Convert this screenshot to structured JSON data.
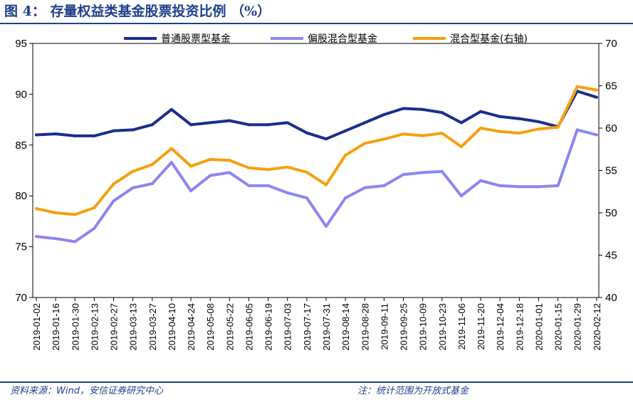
{
  "title": "图 4：  存量权益类基金股票投资比例 （%）",
  "footer": {
    "source": "资料来源：Wind，安信证券研究中心",
    "note": "注：统计范围为开放式基金"
  },
  "colors": {
    "series1": "#1a2d8c",
    "series2": "#8b86f0",
    "series3": "#f5a00f",
    "frame": "#1f3f8c"
  },
  "chart_data": {
    "type": "line",
    "title": "",
    "left_axis": {
      "min": 70,
      "max": 95,
      "ticks": [
        70,
        75,
        80,
        85,
        90,
        95
      ]
    },
    "right_axis": {
      "min": 40,
      "max": 70,
      "ticks": [
        40,
        45,
        50,
        55,
        60,
        65,
        70
      ]
    },
    "categories": [
      "2019-01-02",
      "2019-01-16",
      "2019-01-30",
      "2019-02-13",
      "2019-02-27",
      "2019-03-13",
      "2019-03-27",
      "2019-04-10",
      "2019-04-24",
      "2019-05-08",
      "2019-05-22",
      "2019-06-05",
      "2019-06-19",
      "2019-07-03",
      "2019-07-17",
      "2019-07-31",
      "2019-08-14",
      "2019-08-28",
      "2019-09-11",
      "2019-09-25",
      "2019-10-09",
      "2019-10-23",
      "2019-11-06",
      "2019-11-20",
      "2019-12-04",
      "2019-12-18",
      "2020-01-01",
      "2020-01-15",
      "2020-01-29",
      "2020-02-12"
    ],
    "legend_position": "top",
    "series": [
      {
        "name": "普通股票型基金",
        "axis": "left",
        "values": [
          86.0,
          86.1,
          85.9,
          85.9,
          86.4,
          86.5,
          87.0,
          88.5,
          87.0,
          87.2,
          87.4,
          87.0,
          87.0,
          87.2,
          86.2,
          85.6,
          86.4,
          87.2,
          88.0,
          88.6,
          88.5,
          88.2,
          87.2,
          88.3,
          87.8,
          87.6,
          87.3,
          86.8,
          90.3,
          89.7
        ]
      },
      {
        "name": "偏股混合型基金",
        "axis": "left",
        "values": [
          76.0,
          75.8,
          75.5,
          76.8,
          79.5,
          80.8,
          81.2,
          83.3,
          80.5,
          82.0,
          82.3,
          81.0,
          81.0,
          80.3,
          79.8,
          77.0,
          79.8,
          80.8,
          81.0,
          82.1,
          82.3,
          82.4,
          80.0,
          81.5,
          81.0,
          80.9,
          80.9,
          81.0,
          86.5,
          86.0
        ]
      },
      {
        "name": "混合型基金(右轴)",
        "axis": "right",
        "values": [
          50.5,
          50.0,
          49.8,
          50.6,
          53.4,
          54.9,
          55.7,
          57.6,
          55.5,
          56.3,
          56.2,
          55.3,
          55.1,
          55.4,
          54.8,
          53.3,
          56.8,
          58.2,
          58.7,
          59.3,
          59.1,
          59.4,
          57.8,
          60.0,
          59.6,
          59.4,
          59.9,
          60.1,
          64.9,
          64.5
        ]
      }
    ]
  }
}
